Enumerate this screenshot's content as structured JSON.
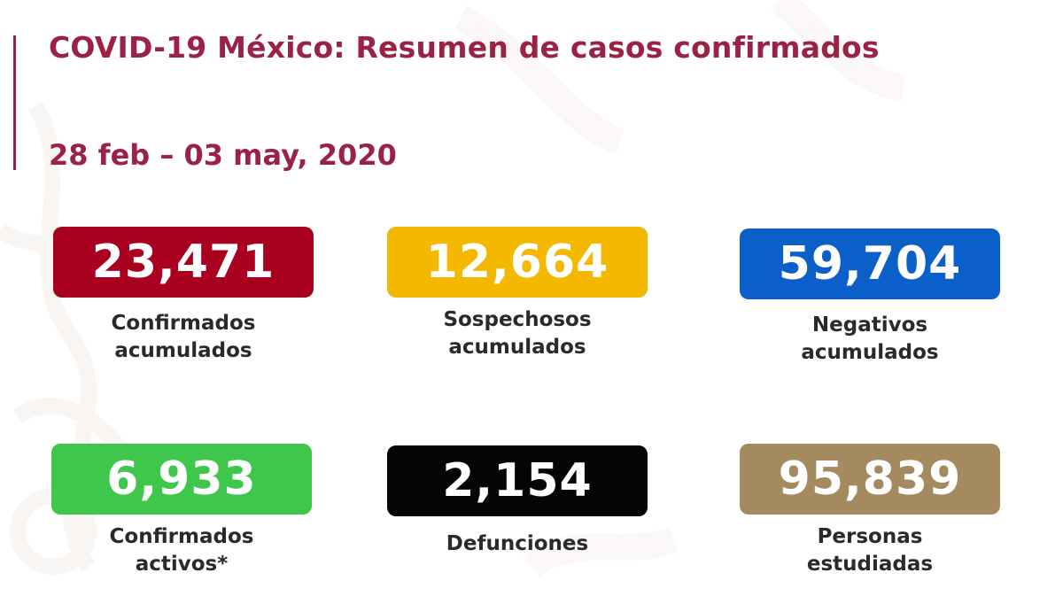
{
  "header": {
    "title": "COVID-19 México: Resumen de casos confirmados",
    "date_range": "28 feb – 03 may, 2020"
  },
  "colors": {
    "accent": "#9b2247"
  },
  "stats": [
    {
      "value": "23,471",
      "label_line1": "Confirmados",
      "label_line2": "acumulados",
      "color": "#a8001e"
    },
    {
      "value": "12,664",
      "label_line1": "Sospechosos",
      "label_line2": "acumulados",
      "color": "#f5b800"
    },
    {
      "value": "59,704",
      "label_line1": "Negativos",
      "label_line2": "acumulados",
      "color": "#0b5fc8"
    },
    {
      "value": "6,933",
      "label_line1": "Confirmados",
      "label_line2": "activos*",
      "color": "#3ec74a"
    },
    {
      "value": "2,154",
      "label_line1": "Defunciones",
      "label_line2": "",
      "color": "#050505"
    },
    {
      "value": "95,839",
      "label_line1": "Personas",
      "label_line2": "estudiadas",
      "color": "#a48a5e"
    }
  ]
}
